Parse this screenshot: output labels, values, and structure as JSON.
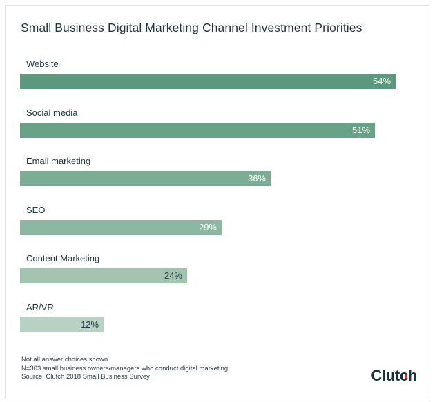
{
  "title": "Small Business Digital Marketing Channel Investment Priorities",
  "chart_data": {
    "type": "bar",
    "orientation": "horizontal",
    "title": "Small Business Digital Marketing Channel Investment Priorities",
    "categories": [
      "Website",
      "Social media",
      "Email marketing",
      "SEO",
      "Content Marketing",
      "AR/VR"
    ],
    "values": [
      54,
      51,
      36,
      29,
      24,
      12
    ],
    "value_labels": [
      "54%",
      "51%",
      "36%",
      "29%",
      "24%",
      "12%"
    ],
    "bar_colors": [
      "#5c987e",
      "#6aa288",
      "#7bac95",
      "#8cb7a2",
      "#a2c4b1",
      "#b7d2c3"
    ],
    "value_label_colors": [
      "#ffffff",
      "#ffffff",
      "#ffffff",
      "#ffffff",
      "#233742",
      "#233742"
    ],
    "axis": "none",
    "grid": false,
    "legend": false
  },
  "footnotes": [
    "Not all answer choices shown",
    "N=303 small business owners/managers who conduct digital marketing",
    "Source: Clutch 2018 Small Business Survey"
  ],
  "logo": {
    "text_pre": "Clut",
    "text_c": "c",
    "text_post": "h",
    "wordmark_color": "#17313d",
    "dot_color": "#e62117"
  }
}
